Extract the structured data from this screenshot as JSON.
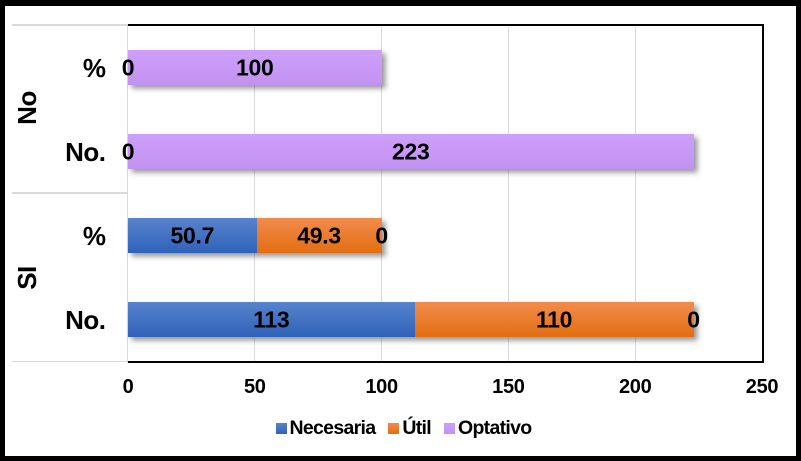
{
  "chart_data": {
    "type": "bar",
    "orientation": "horizontal-stacked",
    "title": "",
    "series": [
      {
        "name": "Necesaria",
        "color": "#4472C4",
        "gradient_top": "#5883CC",
        "gradient_bottom": "#2F62BA"
      },
      {
        "name": "Útil",
        "color": "#ED7D31",
        "gradient_top": "#F28C4D",
        "gradient_bottom": "#E26E10"
      },
      {
        "name": "Optativo",
        "color": "#C59BF0",
        "gradient_top": "#CDA0FA",
        "gradient_bottom": "#C292F2"
      }
    ],
    "groups": [
      {
        "label": "No",
        "rows": [
          {
            "category": "%",
            "values": [
              0,
              0,
              100
            ],
            "labels": [
              "0",
              null,
              "100"
            ]
          },
          {
            "category": "No.",
            "values": [
              0,
              0,
              223
            ],
            "labels": [
              "0",
              null,
              "223"
            ]
          }
        ]
      },
      {
        "label": "SI",
        "rows": [
          {
            "category": "%",
            "values": [
              50.7,
              49.3,
              0
            ],
            "labels": [
              "50.7",
              "49.3",
              "0"
            ]
          },
          {
            "category": "No.",
            "values": [
              113,
              110,
              0
            ],
            "labels": [
              "113",
              "110",
              "0"
            ]
          }
        ]
      }
    ],
    "x_axis": {
      "min": 0,
      "max": 250,
      "tick_step": 50,
      "ticks": [
        "0",
        "50",
        "100",
        "150",
        "200",
        "250"
      ]
    },
    "legend": {
      "position": "bottom",
      "items": [
        "Necesaria",
        "Útil",
        "Optativo"
      ]
    },
    "grid": true,
    "background_color": "#FFFFFF",
    "frame_color": "#000000",
    "gridline_color": "#D9D9D9"
  }
}
